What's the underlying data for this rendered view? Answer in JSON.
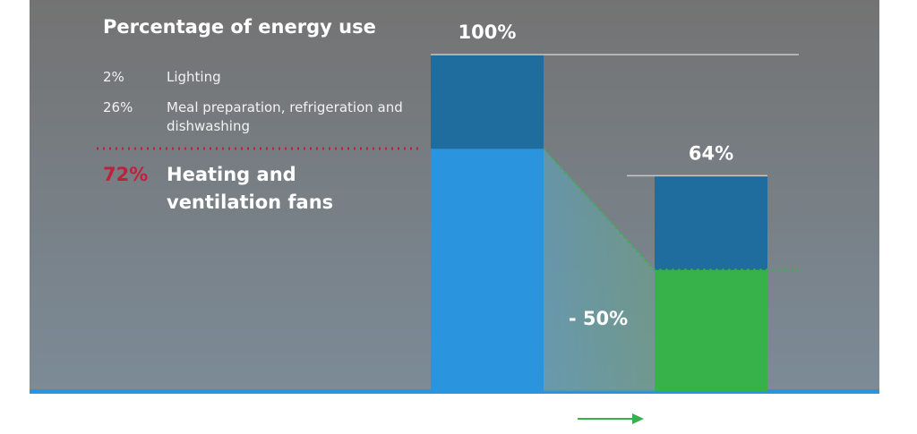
{
  "chart_data": {
    "type": "bar",
    "title": "Percentage of energy use",
    "categories": [
      null,
      null
    ],
    "series": [
      {
        "colors": [
          "#2a95de",
          "#37b24b"
        ],
        "values": [
          72,
          36
        ]
      },
      {
        "colors": [
          "#1f6c9e",
          "#1f6c9e"
        ],
        "values": [
          28,
          28
        ]
      }
    ],
    "totals": {
      "values": [
        100,
        64
      ],
      "value_labels": [
        "100%",
        "64%"
      ]
    },
    "breakdown": {
      "values": [
        2,
        26,
        72
      ],
      "value_labels": [
        "2%",
        "26%",
        "72%"
      ],
      "labels": [
        "Lighting",
        "Meal preparation, refrigeration and dishwashing",
        "Heating and ventilation fans"
      ]
    },
    "change": {
      "value": -50,
      "label": "- 50%"
    },
    "ylim": [
      0,
      100
    ]
  }
}
